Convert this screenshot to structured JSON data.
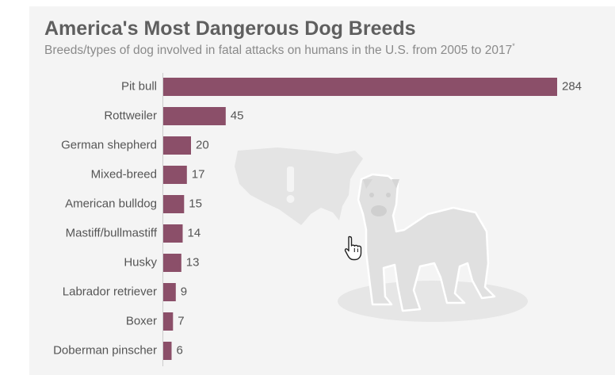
{
  "title": "America's Most Dangerous Dog Breeds",
  "subtitle": "Breeds/types of dog involved in fatal attacks on humans in the U.S. from 2005 to 2017",
  "footnote_marker": "*",
  "colors": {
    "bar": "#8b4f69",
    "background": "#f4f4f4",
    "title": "#5f5f5f",
    "label": "#555555",
    "illustration": "#e4e4e4"
  },
  "illustration_icons": [
    "usa-map-icon",
    "exclamation-icon",
    "pit-bull-dog-icon"
  ],
  "chart_data": {
    "type": "bar",
    "orientation": "horizontal",
    "title": "America's Most Dangerous Dog Breeds",
    "subtitle": "Breeds/types of dog involved in fatal attacks on humans in the U.S. from 2005 to 2017",
    "categories": [
      "Pit bull",
      "Rottweiler",
      "German shepherd",
      "Mixed-breed",
      "American bulldog",
      "Mastiff/bullmastiff",
      "Husky",
      "Labrador retriever",
      "Boxer",
      "Doberman pinscher"
    ],
    "values": [
      284,
      45,
      20,
      17,
      15,
      14,
      13,
      9,
      7,
      6
    ],
    "xlabel": "",
    "ylabel": "",
    "xlim": [
      0,
      284
    ],
    "grid": false,
    "legend": "none",
    "data_labels": true
  }
}
